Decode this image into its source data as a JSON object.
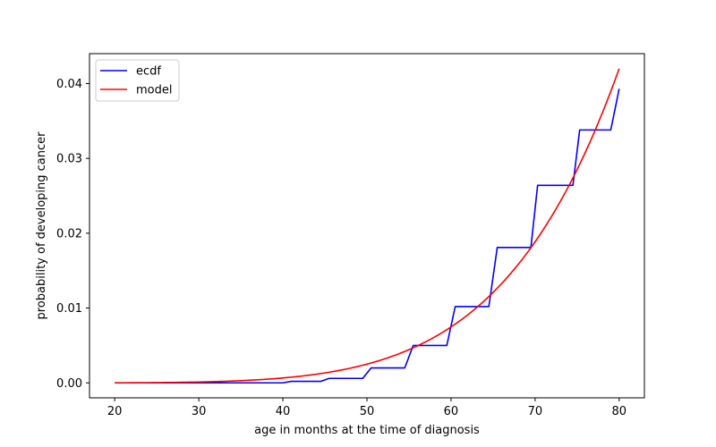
{
  "chart_data": {
    "type": "line",
    "title": "",
    "xlabel": "age in months at the time of diagnosis",
    "ylabel": "probability of developing cancer",
    "xlim": [
      17,
      83
    ],
    "ylim": [
      -0.002,
      0.044
    ],
    "xticks": [
      20,
      30,
      40,
      50,
      60,
      70,
      80
    ],
    "yticks": [
      0.0,
      0.01,
      0.02,
      0.03,
      0.04
    ],
    "ytick_labels": [
      "0.00",
      "0.01",
      "0.02",
      "0.03",
      "0.04"
    ],
    "grid": false,
    "legend_position": "top-left",
    "series": [
      {
        "name": "ecdf",
        "color": "#0000ff",
        "x": [
          20,
          40,
          41,
          44.5,
          45.5,
          49.5,
          50.5,
          54.5,
          55.5,
          59.5,
          60.5,
          64.5,
          65.5,
          69.5,
          70.3,
          74.5,
          75.3,
          79,
          80
        ],
        "y": [
          0.0,
          0.0,
          0.0002,
          0.0002,
          0.0006,
          0.0006,
          0.002,
          0.002,
          0.005,
          0.005,
          0.0102,
          0.0102,
          0.0181,
          0.0181,
          0.0264,
          0.0264,
          0.0338,
          0.0338,
          0.0393
        ]
      },
      {
        "name": "model",
        "color": "#ff0000",
        "function": "power",
        "coefficient": 0.042,
        "exponent": 6,
        "x_range": [
          20,
          80
        ],
        "x_ref": 80
      }
    ]
  }
}
